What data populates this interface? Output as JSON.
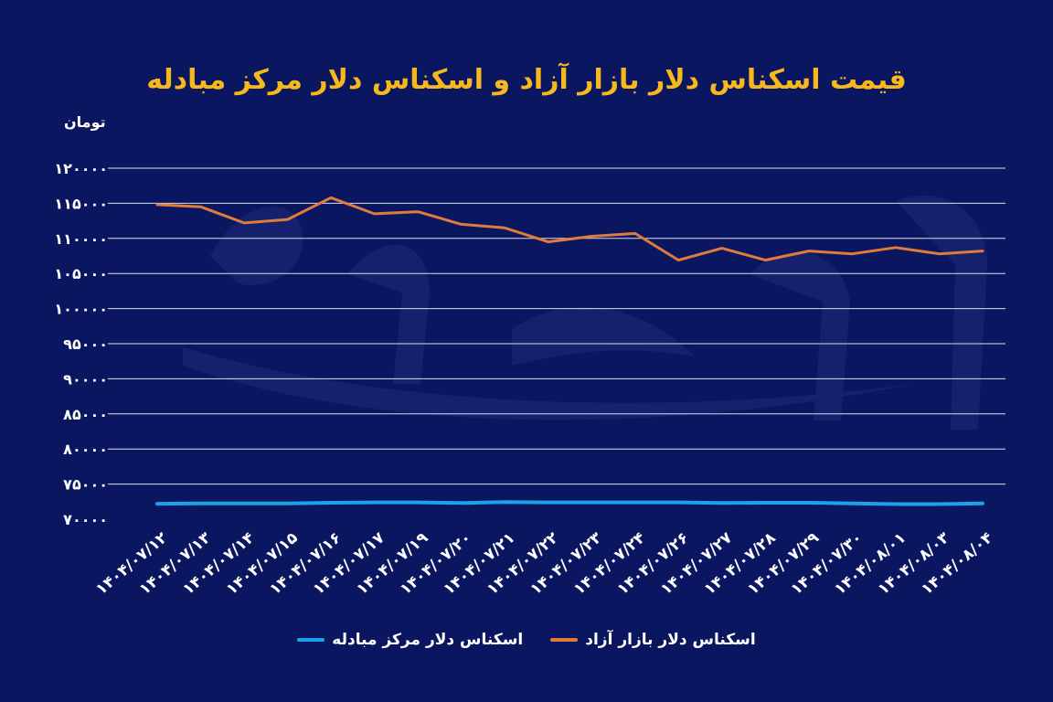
{
  "chart_data": {
    "type": "line",
    "title": "قیمت اسکناس دلار بازار آزاد و اسکناس دلار مرکز مبادله",
    "ylabel": "تومان",
    "xlabel": "",
    "ylim": [
      70000,
      120000
    ],
    "yticks": [
      70000,
      75000,
      80000,
      85000,
      90000,
      95000,
      100000,
      105000,
      110000,
      115000,
      120000
    ],
    "ytick_labels": [
      "۷۰۰۰۰",
      "۷۵۰۰۰",
      "۸۰۰۰۰",
      "۸۵۰۰۰",
      "۹۰۰۰۰",
      "۹۵۰۰۰",
      "۱۰۰۰۰۰",
      "۱۰۵۰۰۰",
      "۱۱۰۰۰۰",
      "۱۱۵۰۰۰",
      "۱۲۰۰۰۰"
    ],
    "categories": [
      "۱۴۰۴/۰۷/۱۲",
      "۱۴۰۴/۰۷/۱۳",
      "۱۴۰۴/۰۷/۱۴",
      "۱۴۰۴/۰۷/۱۵",
      "۱۴۰۴/۰۷/۱۶",
      "۱۴۰۴/۰۷/۱۷",
      "۱۴۰۴/۰۷/۱۹",
      "۱۴۰۴/۰۷/۲۰",
      "۱۴۰۴/۰۷/۲۱",
      "۱۴۰۴/۰۷/۲۲",
      "۱۴۰۴/۰۷/۲۳",
      "۱۴۰۴/۰۷/۲۴",
      "۱۴۰۴/۰۷/۲۶",
      "۱۴۰۴/۰۷/۲۷",
      "۱۴۰۴/۰۷/۲۸",
      "۱۴۰۴/۰۷/۲۹",
      "۱۴۰۴/۰۷/۳۰",
      "۱۴۰۴/۰۸/۰۱",
      "۱۴۰۴/۰۸/۰۳",
      "۱۴۰۴/۰۸/۰۴"
    ],
    "series": [
      {
        "name": "اسکناس دلار بازار آزاد",
        "color": "#e07b3c",
        "values": [
          114800,
          114500,
          112200,
          112700,
          115800,
          113500,
          113800,
          112000,
          111500,
          109500,
          110300,
          110700,
          106900,
          108600,
          106900,
          108200,
          107800,
          108700,
          107800,
          108200
        ]
      },
      {
        "name": "اسکناس دلار مرکز مبادله",
        "color": "#1aa3e8",
        "values": [
          72200,
          72250,
          72250,
          72250,
          72350,
          72400,
          72400,
          72300,
          72450,
          72400,
          72400,
          72400,
          72400,
          72300,
          72350,
          72350,
          72250,
          72150,
          72150,
          72250
        ]
      }
    ],
    "grid": true,
    "legend_position": "bottom"
  },
  "colors": {
    "background": "#0b1660",
    "title": "#f6b81d",
    "grid": "#ffffff",
    "text": "#ffffff"
  }
}
